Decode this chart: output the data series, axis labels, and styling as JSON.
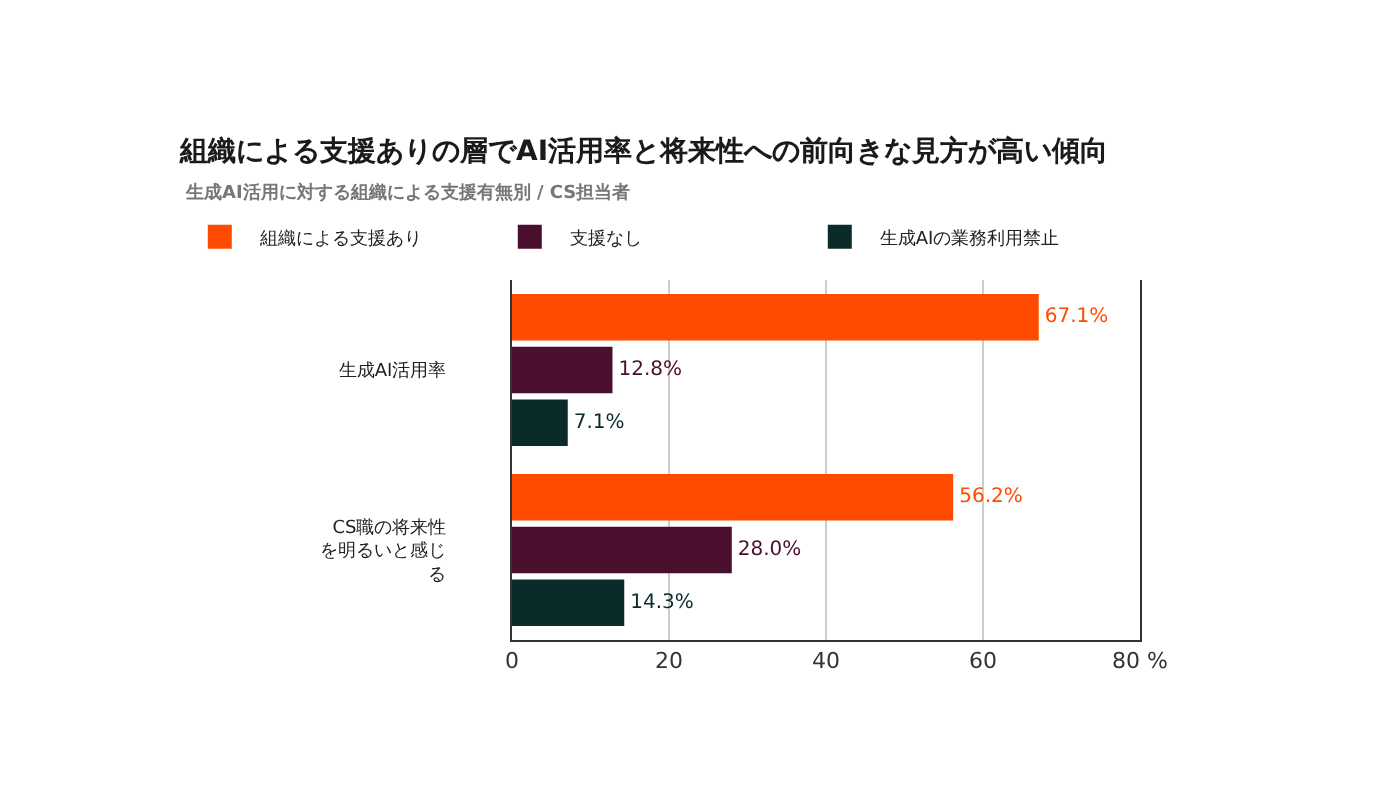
{
  "chart_data": {
    "type": "bar",
    "orientation": "horizontal",
    "title": "組織による支援ありの層でAI活用率と将来性への前向きな見方が高い傾向",
    "subtitle": "生成AI活用に対する組織による支援有無別 / CS担当者",
    "categories": [
      "生成AI活用率",
      "CS職の将来性を明るいと感じる"
    ],
    "series": [
      {
        "name": "組織による支援あり",
        "color": "#ff4b00",
        "values": [
          67.1,
          56.2
        ],
        "value_labels": [
          "67.1%",
          "56.2%"
        ]
      },
      {
        "name": "支援なし",
        "color": "#4a0f2e",
        "values": [
          12.8,
          28.0
        ],
        "value_labels": [
          "12.8%",
          "28.0%"
        ]
      },
      {
        "name": "生成AIの業務利用禁止",
        "color": "#0b2a2a",
        "values": [
          7.1,
          14.3
        ],
        "value_labels": [
          "7.1%",
          "14.3%"
        ]
      }
    ],
    "xlim": [
      0,
      80
    ],
    "xticks": [
      0,
      20,
      40,
      60,
      {
        "value": 80,
        "label": "80 %"
      }
    ],
    "grid": "x",
    "legend": "top left"
  }
}
